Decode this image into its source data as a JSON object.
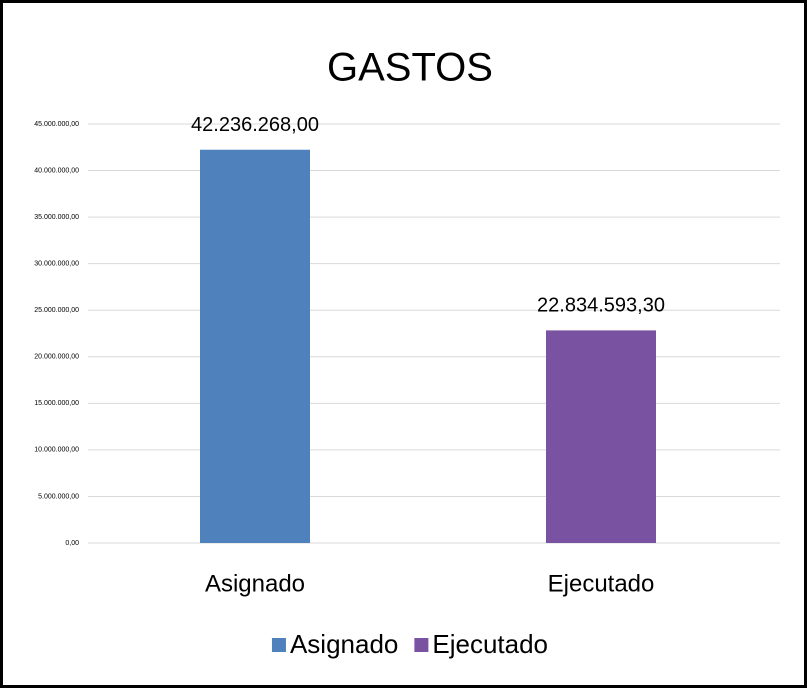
{
  "chart_data": {
    "type": "bar",
    "title": "GASTOS",
    "categories": [
      "Asignado",
      "Ejecutado"
    ],
    "series": [
      {
        "name": "Asignado",
        "color": "#4f81bd",
        "values": [
          42236268,
          null
        ],
        "value_labels": [
          "42.236.268,00",
          null
        ]
      },
      {
        "name": "Ejecutado",
        "color": "#7952a2",
        "values": [
          null,
          22834593.3
        ],
        "value_labels": [
          null,
          "22.834.593,30"
        ]
      }
    ],
    "ylim": [
      0,
      45000000
    ],
    "yticks": [
      {
        "value": 0,
        "label": "0,00"
      },
      {
        "value": 5000000,
        "label": "5.000.000,00"
      },
      {
        "value": 10000000,
        "label": "10.000.000,00"
      },
      {
        "value": 15000000,
        "label": "15.000.000,00"
      },
      {
        "value": 20000000,
        "label": "20.000.000,00"
      },
      {
        "value": 25000000,
        "label": "25.000.000,00"
      },
      {
        "value": 30000000,
        "label": "30.000.000,00"
      },
      {
        "value": 35000000,
        "label": "35.000.000,00"
      },
      {
        "value": 40000000,
        "label": "40.000.000,00"
      },
      {
        "value": 45000000,
        "label": "45.000.000,00"
      }
    ],
    "grid": true,
    "legend": "bottom"
  }
}
